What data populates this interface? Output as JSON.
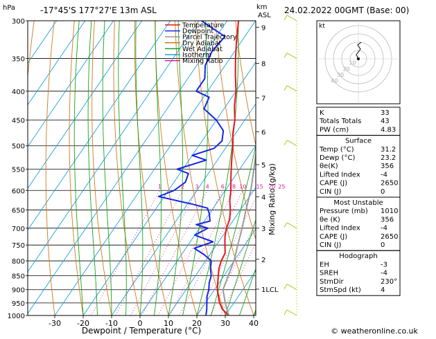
{
  "header": {
    "location": "-17°45'S  177°27'E  13m  ASL",
    "datetime": "24.02.2022  00GMT  (Base: 00)"
  },
  "chart_data": {
    "type": "line",
    "title": "-17°45'S  177°27'E  13m  ASL",
    "xlabel": "Dewpoint / Temperature (°C)",
    "ylabel_left": "hPa",
    "ylabel_right": "Mixing Ratio (g/kg)",
    "km_axis_label": "km\nASL",
    "pressure_levels": [
      300,
      350,
      400,
      450,
      500,
      550,
      600,
      650,
      700,
      750,
      800,
      850,
      900,
      950,
      1000
    ],
    "pressure_tick_labels": [
      "300",
      "350",
      "400",
      "450",
      "500",
      "550",
      "600",
      "650",
      "700",
      "750",
      "800",
      "850",
      "900",
      "950",
      "1000"
    ],
    "temperature_ticks": [
      -30,
      -20,
      -10,
      0,
      10,
      20,
      30,
      40
    ],
    "temperature_tick_labels": [
      "-30",
      "-20",
      "-10",
      "0",
      "10",
      "20",
      "30",
      "40"
    ],
    "xlim": [
      -35,
      40
    ],
    "ylim": [
      1000,
      300
    ],
    "km_ticks": [
      {
        "label": "9",
        "p": 308
      },
      {
        "label": "8",
        "p": 357
      },
      {
        "label": "7",
        "p": 411
      },
      {
        "label": "6",
        "p": 472
      },
      {
        "label": "5",
        "p": 540
      },
      {
        "label": "4",
        "p": 616
      },
      {
        "label": "3",
        "p": 700
      },
      {
        "label": "2",
        "p": 795
      },
      {
        "label": "1LCL",
        "p": 898
      }
    ],
    "mixing_ratio_labels": [
      {
        "label": "1",
        "value": 1
      },
      {
        "label": "2",
        "value": 2
      },
      {
        "label": "3",
        "value": 3
      },
      {
        "label": "4",
        "value": 4
      },
      {
        "label": "6",
        "value": 6
      },
      {
        "label": "8",
        "value": 8
      },
      {
        "label": "10",
        "value": 10
      },
      {
        "label": "15",
        "value": 15
      },
      {
        "label": "20",
        "value": 20
      },
      {
        "label": "25",
        "value": 25
      }
    ],
    "legend": [
      {
        "name": "Temperature",
        "color": "#e8131b"
      },
      {
        "name": "Dewpoint",
        "color": "#1424e8"
      },
      {
        "name": "Parcel Trajectory",
        "color": "#999999"
      },
      {
        "name": "Dry Adiabat",
        "color": "#d07818"
      },
      {
        "name": "Wet Adiabat",
        "color": "#16a316"
      },
      {
        "name": "Isotherm",
        "color": "#1aa0e0"
      },
      {
        "name": "Mixing Ratio",
        "color": "#d8188f"
      }
    ],
    "legend_placement": "top-left",
    "series": [
      {
        "name": "Temperature",
        "color": "#e8131b",
        "points": [
          [
            1000,
            31.2
          ],
          [
            975,
            27.5
          ],
          [
            950,
            25
          ],
          [
            925,
            23
          ],
          [
            900,
            21
          ],
          [
            875,
            19.5
          ],
          [
            850,
            18
          ],
          [
            825,
            16.5
          ],
          [
            800,
            15.5
          ],
          [
            775,
            15
          ],
          [
            750,
            13
          ],
          [
            725,
            11
          ],
          [
            700,
            9.5
          ],
          [
            675,
            8.5
          ],
          [
            650,
            6.5
          ],
          [
            625,
            4
          ],
          [
            600,
            2
          ],
          [
            575,
            -0.5
          ],
          [
            550,
            -3
          ],
          [
            525,
            -5.5
          ],
          [
            500,
            -8
          ],
          [
            475,
            -11
          ],
          [
            450,
            -13.5
          ],
          [
            425,
            -17
          ],
          [
            400,
            -20
          ],
          [
            375,
            -24
          ],
          [
            350,
            -28
          ],
          [
            325,
            -32
          ],
          [
            300,
            -36
          ]
        ]
      },
      {
        "name": "Dewpoint",
        "color": "#1424e8",
        "points": [
          [
            1000,
            23.2
          ],
          [
            975,
            22
          ],
          [
            950,
            20.5
          ],
          [
            925,
            19
          ],
          [
            900,
            18
          ],
          [
            875,
            16.5
          ],
          [
            850,
            15.5
          ],
          [
            825,
            13.5
          ],
          [
            800,
            12
          ],
          [
            780,
            8
          ],
          [
            760,
            3
          ],
          [
            740,
            8
          ],
          [
            720,
            0
          ],
          [
            700,
            3
          ],
          [
            690,
            -2
          ],
          [
            680,
            2
          ],
          [
            660,
            0
          ],
          [
            645,
            -2
          ],
          [
            635,
            -8
          ],
          [
            625,
            -15
          ],
          [
            615,
            -22
          ],
          [
            600,
            -18
          ],
          [
            580,
            -16
          ],
          [
            560,
            -17
          ],
          [
            550,
            -22
          ],
          [
            530,
            -14
          ],
          [
            520,
            -20
          ],
          [
            505,
            -14
          ],
          [
            490,
            -13
          ],
          [
            470,
            -15
          ],
          [
            450,
            -20
          ],
          [
            430,
            -27
          ],
          [
            410,
            -28
          ],
          [
            400,
            -34
          ],
          [
            380,
            -34
          ],
          [
            360,
            -37
          ],
          [
            340,
            -38
          ],
          [
            320,
            -37
          ],
          [
            305,
            -46
          ],
          [
            300,
            -49
          ]
        ]
      },
      {
        "name": "Parcel Trajectory",
        "color": "#999999",
        "points": [
          [
            1000,
            31.2
          ],
          [
            950,
            27
          ],
          [
            900,
            23
          ],
          [
            850,
            21.5
          ],
          [
            800,
            20
          ],
          [
            750,
            17.5
          ],
          [
            700,
            15
          ],
          [
            650,
            12
          ],
          [
            600,
            9
          ],
          [
            550,
            5
          ],
          [
            500,
            0.5
          ],
          [
            450,
            -4
          ],
          [
            400,
            -10.5
          ],
          [
            350,
            -18
          ],
          [
            300,
            -27
          ]
        ]
      }
    ],
    "hodograph": {
      "label": "kt",
      "ring_labels": [
        "10",
        "20",
        "30",
        "40"
      ]
    },
    "wind_barbs": [
      {
        "p": 300,
        "label": "wind-barb-300"
      },
      {
        "p": 350,
        "label": "wind-barb-350"
      },
      {
        "p": 400,
        "label": "wind-barb-400"
      },
      {
        "p": 500,
        "label": "wind-barb-500"
      },
      {
        "p": 700,
        "label": "wind-barb-700"
      },
      {
        "p": 900,
        "label": "wind-barb-900"
      },
      {
        "p": 1000,
        "label": "wind-barb-1000"
      }
    ]
  },
  "indices_top": [
    {
      "label": "K",
      "value": "33"
    },
    {
      "label": "Totals Totals",
      "value": "43"
    },
    {
      "label": "PW (cm)",
      "value": "4.83"
    }
  ],
  "surface": {
    "title": "Surface",
    "rows": [
      {
        "label": "Temp (°C)",
        "value": "31.2"
      },
      {
        "label": "Dewp (°C)",
        "value": "23.2"
      },
      {
        "label": "θe(K)",
        "value": "356"
      },
      {
        "label": "Lifted Index",
        "value": "-4"
      },
      {
        "label": "CAPE (J)",
        "value": "2650"
      },
      {
        "label": "CIN (J)",
        "value": "0"
      }
    ]
  },
  "most_unstable": {
    "title": "Most Unstable",
    "rows": [
      {
        "label": "Pressure (mb)",
        "value": "1010"
      },
      {
        "label": "θe (K)",
        "value": "356"
      },
      {
        "label": "Lifted Index",
        "value": "-4"
      },
      {
        "label": "CAPE (J)",
        "value": "2650"
      },
      {
        "label": "CIN (J)",
        "value": "0"
      }
    ]
  },
  "hodograph_table": {
    "title": "Hodograph",
    "rows": [
      {
        "label": "EH",
        "value": "-3"
      },
      {
        "label": "SREH",
        "value": "-4"
      },
      {
        "label": "StmDir",
        "value": "230°"
      },
      {
        "label": "StmSpd (kt)",
        "value": "4"
      }
    ]
  },
  "footer": {
    "copyright": "© weatheronline.co.uk"
  }
}
